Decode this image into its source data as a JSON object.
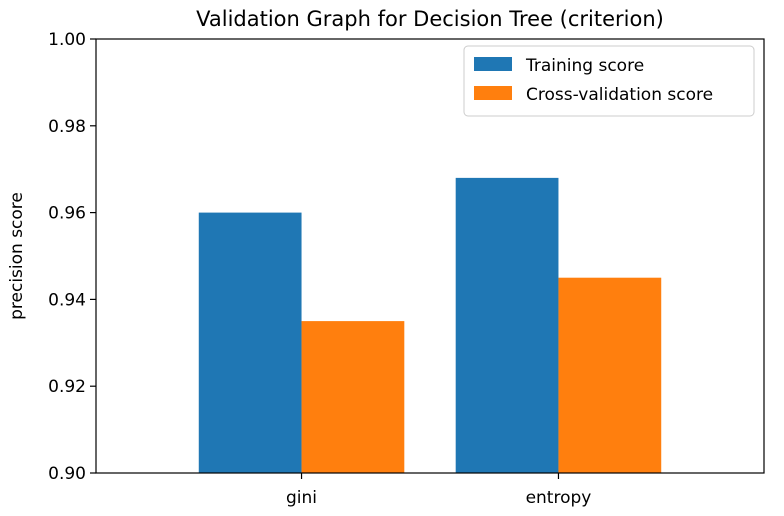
{
  "chart_data": {
    "type": "bar",
    "title": "Validation Graph for Decision Tree (criterion)",
    "xlabel": "",
    "ylabel": "precision score",
    "categories": [
      "gini",
      "entropy"
    ],
    "ylim": [
      0.9,
      1.0
    ],
    "yticks": [
      "0.90",
      "0.92",
      "0.94",
      "0.96",
      "0.98",
      "1.00"
    ],
    "series": [
      {
        "name": "Training score",
        "color": "#1f77b4",
        "values": [
          0.96,
          0.968
        ]
      },
      {
        "name": "Cross-validation score",
        "color": "#ff7f0e",
        "values": [
          0.935,
          0.945
        ]
      }
    ],
    "legend_position": "top-right",
    "grid": false
  }
}
